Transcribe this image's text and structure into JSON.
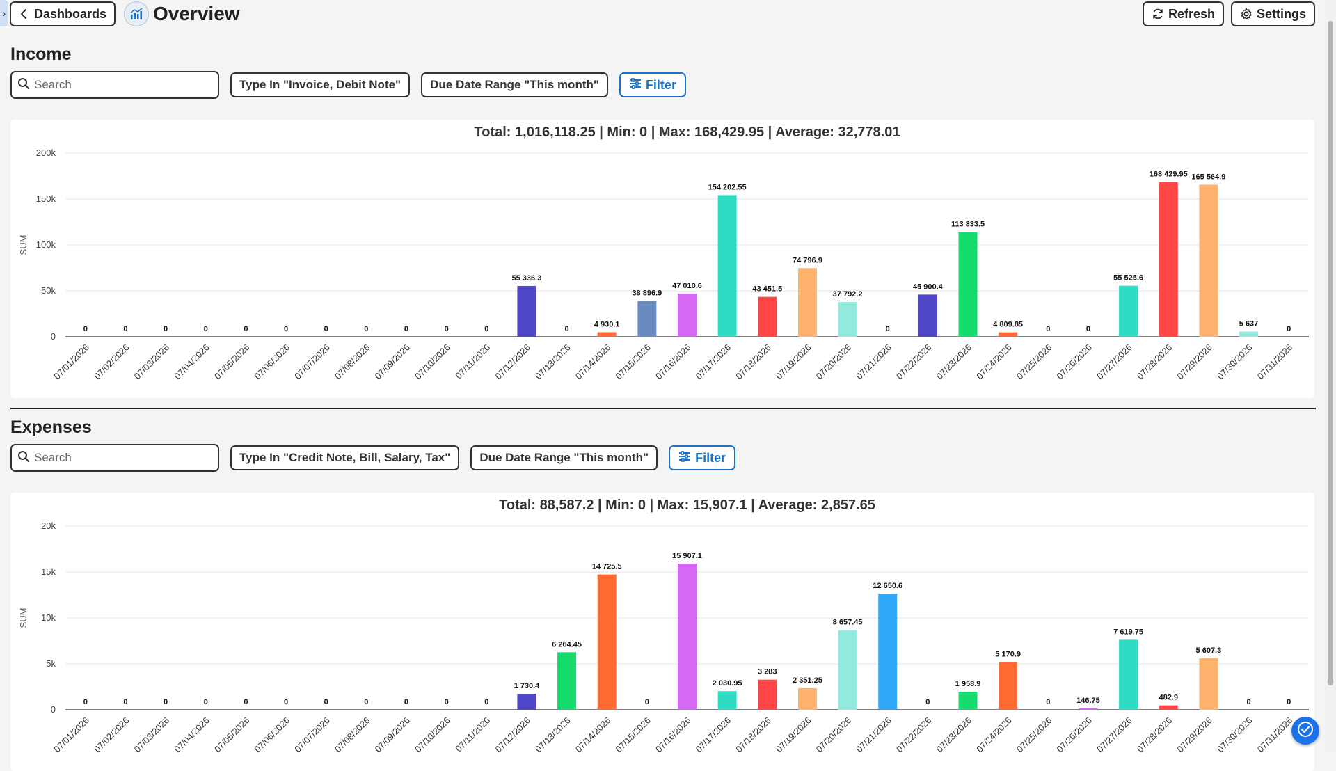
{
  "header": {
    "back_label": "Dashboards",
    "title": "Overview",
    "refresh_label": "Refresh",
    "settings_label": "Settings"
  },
  "income": {
    "title": "Income",
    "search_placeholder": "Search",
    "chip_type": "Type In \"Invoice, Debit Note\"",
    "chip_date": "Due Date Range \"This month\"",
    "filter_label": "Filter"
  },
  "expenses": {
    "title": "Expenses",
    "search_placeholder": "Search",
    "chip_type": "Type In \"Credit Note, Bill, Salary, Tax\"",
    "chip_date": "Due Date Range \"This month\"",
    "filter_label": "Filter"
  },
  "chart_data": [
    {
      "type": "bar",
      "title": "Total: 1,016,118.25 | Min: 0 | Max: 168,429.95 | Average: 32,778.01",
      "ylabel": "SUM",
      "ylim": [
        0,
        200000
      ],
      "yticks": [
        "0",
        "50k",
        "100k",
        "150k",
        "200k"
      ],
      "grid": true,
      "categories": [
        "07/01/2026",
        "07/02/2026",
        "07/03/2026",
        "07/04/2026",
        "07/05/2026",
        "07/06/2026",
        "07/07/2026",
        "07/08/2026",
        "07/09/2026",
        "07/10/2026",
        "07/11/2026",
        "07/12/2026",
        "07/13/2026",
        "07/14/2026",
        "07/15/2026",
        "07/16/2026",
        "07/17/2026",
        "07/18/2026",
        "07/19/2026",
        "07/20/2026",
        "07/21/2026",
        "07/22/2026",
        "07/23/2026",
        "07/24/2026",
        "07/25/2026",
        "07/26/2026",
        "07/27/2026",
        "07/28/2026",
        "07/29/2026",
        "07/30/2026",
        "07/31/2026"
      ],
      "values": [
        0,
        0,
        0,
        0,
        0,
        0,
        0,
        0,
        0,
        0,
        0,
        55336.3,
        0,
        4930.1,
        38896.9,
        47010.6,
        154202.55,
        43451.5,
        74796.9,
        37792.2,
        0,
        45900.4,
        113833.5,
        4809.85,
        0,
        0,
        55525.6,
        168429.95,
        165564.9,
        5637,
        0
      ],
      "labels": [
        "0",
        "0",
        "0",
        "0",
        "0",
        "0",
        "0",
        "0",
        "0",
        "0",
        "0",
        "55 336.3",
        "0",
        "4 930.1",
        "38 896.9",
        "47 010.6",
        "154 202.55",
        "43 451.5",
        "74 796.9",
        "37 792.2",
        "0",
        "45 900.4",
        "113 833.5",
        "4 809.85",
        "0",
        "0",
        "55 525.6",
        "168 429.95",
        "165 564.9",
        "5 637",
        "0"
      ],
      "colors": [
        "#5046c8",
        "#14db6b",
        "#ff6a33",
        "#ff6a33",
        "#6a8bbf",
        "#d569f5",
        "#2edcc4",
        "#ff4545",
        "#ffb26b",
        "#93eadf",
        "#2fa8f8",
        "#5046c8",
        "#14db6b",
        "#ff6a33",
        "#6a8bbf",
        "#d569f5",
        "#2edcc4",
        "#ff4545",
        "#ffb26b",
        "#93eadf",
        "#2fa8f8",
        "#5046c8",
        "#14db6b",
        "#ff6a33",
        "#6a8bbf",
        "#d569f5",
        "#2edcc4",
        "#ff4545",
        "#ffb26b",
        "#93eadf",
        "#2fa8f8"
      ]
    },
    {
      "type": "bar",
      "title": "Total: 88,587.2 | Min: 0 | Max: 15,907.1 | Average: 2,857.65",
      "ylabel": "SUM",
      "ylim": [
        0,
        20000
      ],
      "yticks": [
        "0",
        "5k",
        "10k",
        "15k",
        "20k"
      ],
      "grid": true,
      "categories": [
        "07/01/2026",
        "07/02/2026",
        "07/03/2026",
        "07/04/2026",
        "07/05/2026",
        "07/06/2026",
        "07/07/2026",
        "07/08/2026",
        "07/09/2026",
        "07/10/2026",
        "07/11/2026",
        "07/12/2026",
        "07/13/2026",
        "07/14/2026",
        "07/15/2026",
        "07/16/2026",
        "07/17/2026",
        "07/18/2026",
        "07/19/2026",
        "07/20/2026",
        "07/21/2026",
        "07/22/2026",
        "07/23/2026",
        "07/24/2026",
        "07/25/2026",
        "07/26/2026",
        "07/27/2026",
        "07/28/2026",
        "07/29/2026",
        "07/30/2026",
        "07/31/2026"
      ],
      "values": [
        0,
        0,
        0,
        0,
        0,
        0,
        0,
        0,
        0,
        0,
        0,
        1730.4,
        6264.45,
        14725.5,
        0,
        15907.1,
        2030.95,
        3283,
        2351.25,
        8657.45,
        12650.6,
        0,
        1958.9,
        5170.9,
        0,
        146.75,
        7619.75,
        482.9,
        5607.3,
        0,
        0
      ],
      "labels": [
        "0",
        "0",
        "0",
        "0",
        "0",
        "0",
        "0",
        "0",
        "0",
        "0",
        "0",
        "1 730.4",
        "6 264.45",
        "14 725.5",
        "0",
        "15 907.1",
        "2 030.95",
        "3 283",
        "2 351.25",
        "8 657.45",
        "12 650.6",
        "0",
        "1 958.9",
        "5 170.9",
        "0",
        "146.75",
        "7 619.75",
        "482.9",
        "5 607.3",
        "0",
        "0"
      ],
      "colors": [
        "#5046c8",
        "#14db6b",
        "#ff6a33",
        "#ff6a33",
        "#6a8bbf",
        "#d569f5",
        "#2edcc4",
        "#ff4545",
        "#ffb26b",
        "#93eadf",
        "#2fa8f8",
        "#5046c8",
        "#14db6b",
        "#ff6a33",
        "#6a8bbf",
        "#d569f5",
        "#2edcc4",
        "#ff4545",
        "#ffb26b",
        "#93eadf",
        "#2fa8f8",
        "#5046c8",
        "#14db6b",
        "#ff6a33",
        "#6a8bbf",
        "#d569f5",
        "#2edcc4",
        "#ff4545",
        "#ffb26b",
        "#93eadf",
        "#2fa8f8"
      ]
    }
  ]
}
